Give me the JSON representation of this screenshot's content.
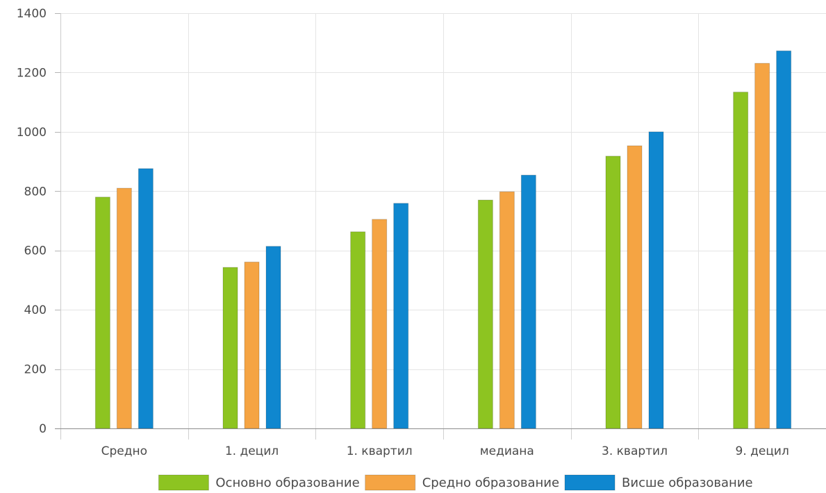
{
  "chart_data": {
    "type": "bar",
    "title": "",
    "xlabel": "",
    "ylabel": "",
    "categories": [
      "Средно",
      "1. децил",
      "1. квартил",
      "медиана",
      "3. квартил",
      "9. децил"
    ],
    "series": [
      {
        "name": "Основно образование",
        "color": "#8dc421",
        "values": [
          780,
          543,
          663,
          770,
          918,
          1134
        ]
      },
      {
        "name": "Средно образование",
        "color": "#f5a443",
        "values": [
          810,
          561,
          705,
          798,
          953,
          1231
        ]
      },
      {
        "name": "Висше образование",
        "color": "#0f87cf",
        "values": [
          876,
          614,
          759,
          854,
          1000,
          1273
        ]
      }
    ],
    "ylim": [
      0,
      1400
    ],
    "yticks": [
      0,
      200,
      400,
      600,
      800,
      1000,
      1200,
      1400
    ],
    "grid": true,
    "legend_position": "bottom"
  }
}
